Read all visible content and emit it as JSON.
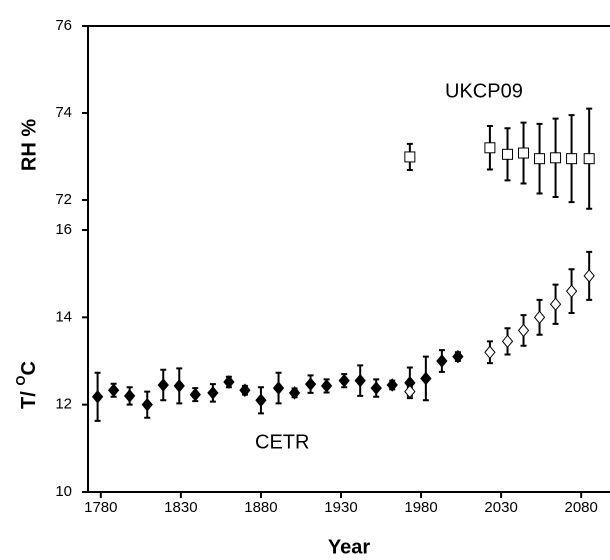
{
  "chart_data": [
    {
      "type": "scatter",
      "y_label": "RH %",
      "xlim": [
        1772,
        2098
      ],
      "ylim": [
        72,
        76
      ],
      "yticks": [
        72,
        74,
        76
      ],
      "series": [
        {
          "name": "UKCP09",
          "color": "#000000",
          "marker": "square",
          "fill": "#ffffff",
          "x": [
            1973,
            2023,
            2034,
            2044,
            2054,
            2064,
            2074,
            2085
          ],
          "values": [
            72.99,
            73.2,
            73.05,
            73.08,
            72.95,
            72.97,
            72.95,
            72.95
          ],
          "errors": [
            0.3,
            0.5,
            0.6,
            0.7,
            0.8,
            0.9,
            1.0,
            1.15
          ]
        }
      ]
    },
    {
      "type": "scatter",
      "x_label": "Year",
      "y_label": "T/ ",
      "y_label_sup": "O",
      "y_label_end": "C",
      "xlim": [
        1772,
        2098
      ],
      "xticks": [
        1780,
        1830,
        1880,
        1930,
        1980,
        2030,
        2080
      ],
      "ylim": [
        10,
        16
      ],
      "yticks": [
        10,
        12,
        14,
        16
      ],
      "series": [
        {
          "name": "CETR",
          "color": "#000000",
          "marker": "diamond",
          "fill": "#000000",
          "x": [
            1778,
            1788,
            1798,
            1809,
            1819,
            1829,
            1839,
            1850,
            1860,
            1870,
            1880,
            1891,
            1901,
            1911,
            1921,
            1932,
            1942,
            1952,
            1962,
            1973,
            1983,
            1993,
            2003
          ],
          "values": [
            12.18,
            12.33,
            12.2,
            12.0,
            12.45,
            12.43,
            12.23,
            12.27,
            12.52,
            12.33,
            12.1,
            12.38,
            12.27,
            12.47,
            12.43,
            12.55,
            12.55,
            12.38,
            12.45,
            12.5,
            12.6,
            13.0,
            13.1
          ],
          "errors": [
            0.55,
            0.15,
            0.2,
            0.3,
            0.35,
            0.4,
            0.15,
            0.2,
            0.12,
            0.1,
            0.3,
            0.35,
            0.1,
            0.2,
            0.15,
            0.15,
            0.35,
            0.2,
            0.1,
            0.35,
            0.5,
            0.25,
            0.1
          ]
        },
        {
          "color": "#000000",
          "marker": "diamond",
          "fill": "#ffffff",
          "x": [
            1973,
            2023,
            2034,
            2044,
            2054,
            2064,
            2074,
            2085
          ],
          "values": [
            12.3,
            13.2,
            13.45,
            13.7,
            14.0,
            14.3,
            14.6,
            14.95
          ],
          "errors": [
            0.1,
            0.25,
            0.3,
            0.35,
            0.4,
            0.45,
            0.5,
            0.55
          ]
        }
      ]
    }
  ]
}
